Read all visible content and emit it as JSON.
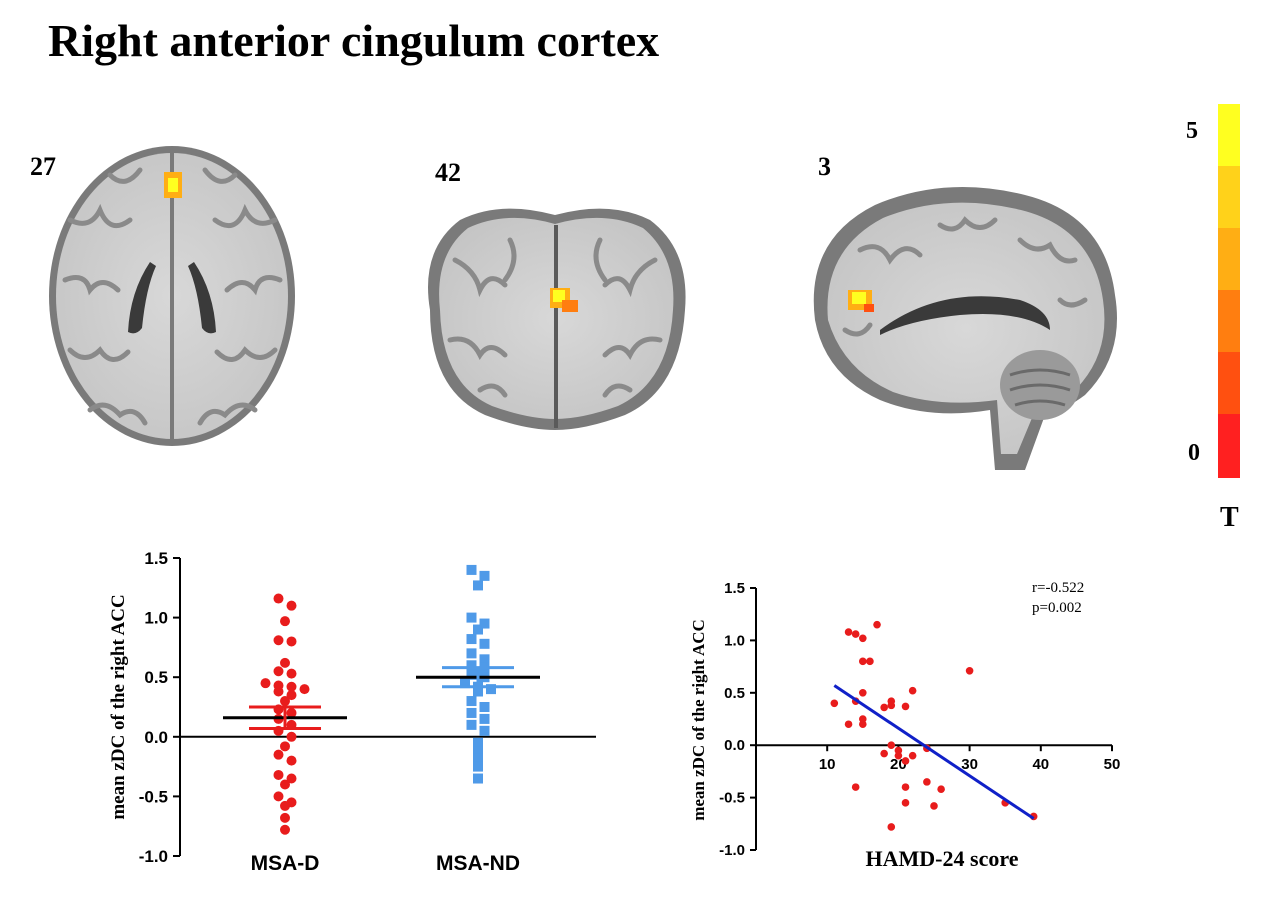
{
  "title": "Right anterior cingulum cortex",
  "slices": [
    {
      "label": "27"
    },
    {
      "label": "42"
    },
    {
      "label": "3"
    }
  ],
  "colorbar": {
    "max_label": "5",
    "min_label": "0",
    "title": "T",
    "colors": [
      "#ffff20",
      "#ffd21a",
      "#ffae14",
      "#ff7e10",
      "#ff5010",
      "#ff2020"
    ]
  },
  "colors": {
    "msa_d": "#e81c1c",
    "msa_nd": "#4f9ae8",
    "fit_line": "#1020c8",
    "scatter_point": "#e81c1c"
  },
  "chart_data": [
    {
      "type": "scatter",
      "subtype": "dot-plot",
      "title": "",
      "xlabel": "",
      "ylabel": "mean zDC of the right ACC",
      "ylim": [
        -1.0,
        1.5
      ],
      "yticks": [
        "1.5",
        "1.0",
        "0.5",
        "0.0",
        "-0.5",
        "-1.0"
      ],
      "categories": [
        "MSA-D",
        "MSA-ND"
      ],
      "series": [
        {
          "name": "MSA-D",
          "values": [
            1.16,
            1.1,
            0.97,
            0.81,
            0.8,
            0.62,
            0.55,
            0.53,
            0.45,
            0.43,
            0.42,
            0.4,
            0.38,
            0.35,
            0.3,
            0.23,
            0.2,
            0.15,
            0.1,
            0.05,
            0.0,
            -0.08,
            -0.15,
            -0.2,
            -0.32,
            -0.35,
            -0.4,
            -0.5,
            -0.55,
            -0.58,
            -0.68,
            -0.78
          ],
          "mean": 0.16,
          "sem_upper": 0.25,
          "sem_lower": 0.07
        },
        {
          "name": "MSA-ND",
          "values": [
            1.4,
            1.35,
            1.27,
            1.0,
            0.95,
            0.9,
            0.82,
            0.78,
            0.7,
            0.65,
            0.6,
            0.58,
            0.52,
            0.5,
            0.45,
            0.42,
            0.4,
            0.38,
            0.3,
            0.25,
            0.2,
            0.15,
            0.1,
            0.05,
            -0.05,
            -0.12,
            -0.18,
            -0.25,
            -0.35
          ],
          "mean": 0.5,
          "sem_upper": 0.58,
          "sem_lower": 0.42
        }
      ]
    },
    {
      "type": "scatter",
      "title": "",
      "xlabel": "HAMD-24 score",
      "ylabel": "mean zDC of the right ACC",
      "xlim": [
        0,
        50
      ],
      "ylim": [
        -1.0,
        1.5
      ],
      "xticks": [
        "10",
        "20",
        "30",
        "40",
        "50"
      ],
      "yticks": [
        "1.5",
        "1.0",
        "0.5",
        "0.0",
        "-0.5",
        "-1.0"
      ],
      "annotations": [
        "r=-0.522",
        "p=0.002"
      ],
      "points": [
        {
          "x": 13,
          "y": 1.08
        },
        {
          "x": 14,
          "y": 1.06
        },
        {
          "x": 17,
          "y": 1.15
        },
        {
          "x": 15,
          "y": 1.02
        },
        {
          "x": 15,
          "y": 0.8
        },
        {
          "x": 16,
          "y": 0.8
        },
        {
          "x": 30,
          "y": 0.71
        },
        {
          "x": 15,
          "y": 0.5
        },
        {
          "x": 22,
          "y": 0.52
        },
        {
          "x": 11,
          "y": 0.4
        },
        {
          "x": 14,
          "y": 0.42
        },
        {
          "x": 18,
          "y": 0.36
        },
        {
          "x": 19,
          "y": 0.42
        },
        {
          "x": 19,
          "y": 0.38
        },
        {
          "x": 21,
          "y": 0.37
        },
        {
          "x": 15,
          "y": 0.25
        },
        {
          "x": 15,
          "y": 0.2
        },
        {
          "x": 13,
          "y": 0.2
        },
        {
          "x": 19,
          "y": 0.0
        },
        {
          "x": 18,
          "y": -0.08
        },
        {
          "x": 20,
          "y": -0.05
        },
        {
          "x": 20,
          "y": -0.1
        },
        {
          "x": 21,
          "y": -0.15
        },
        {
          "x": 22,
          "y": -0.1
        },
        {
          "x": 24,
          "y": -0.03
        },
        {
          "x": 14,
          "y": -0.4
        },
        {
          "x": 21,
          "y": -0.4
        },
        {
          "x": 24,
          "y": -0.35
        },
        {
          "x": 26,
          "y": -0.42
        },
        {
          "x": 21,
          "y": -0.55
        },
        {
          "x": 25,
          "y": -0.58
        },
        {
          "x": 35,
          "y": -0.55
        },
        {
          "x": 19,
          "y": -0.78
        },
        {
          "x": 39,
          "y": -0.68
        }
      ],
      "fit_line": {
        "x": [
          11,
          39
        ],
        "y": [
          0.57,
          -0.7
        ]
      }
    }
  ]
}
